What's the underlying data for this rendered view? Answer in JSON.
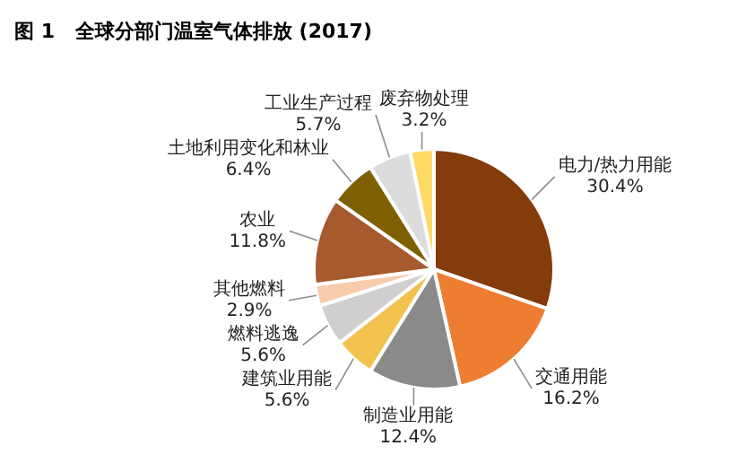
{
  "chart_data": {
    "type": "pie",
    "title": "图 1   全球分部门温室气体排放 (2017)",
    "categories": [
      "电力/热力用能",
      "交通用能",
      "制造业用能",
      "建筑业用能",
      "燃料逃逸",
      "其他燃料",
      "农业",
      "土地利用变化和林业",
      "工业生产过程",
      "废弃物处理"
    ],
    "values": [
      30.4,
      16.2,
      12.4,
      5.6,
      5.6,
      2.9,
      11.8,
      6.4,
      5.7,
      3.2
    ],
    "value_labels": [
      "30.4%",
      "16.2%",
      "12.4%",
      "5.6%",
      "5.6%",
      "2.9%",
      "11.8%",
      "6.4%",
      "5.7%",
      "3.2%"
    ],
    "colors": [
      "#843c0c",
      "#ed7d31",
      "#8a8a8a",
      "#f2c14e",
      "#d0cece",
      "#f8cbad",
      "#a65a2e",
      "#7f6000",
      "#dcdcdc",
      "#ffd966"
    ]
  }
}
